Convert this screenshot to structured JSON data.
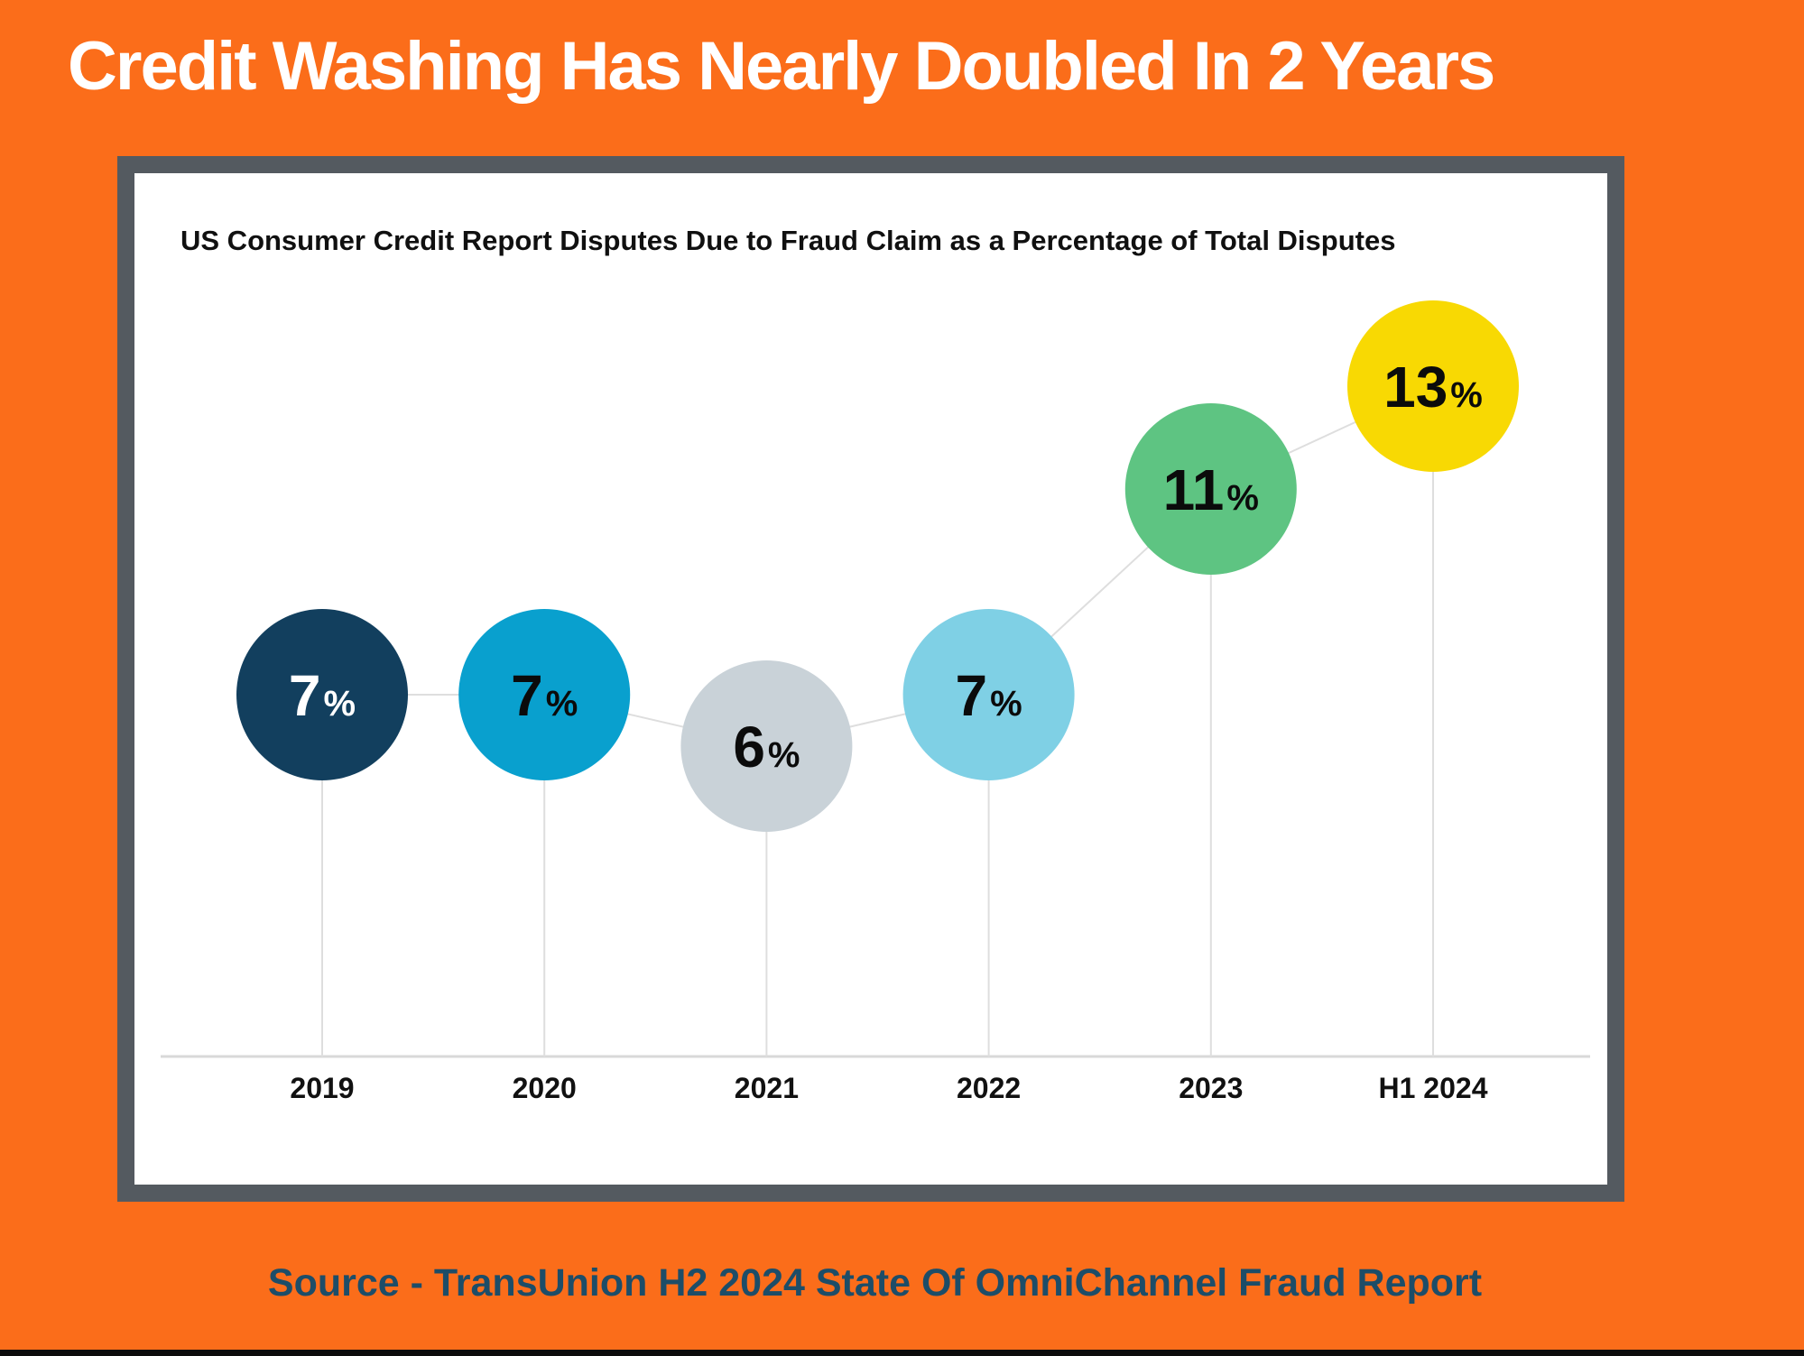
{
  "header": {
    "title": "Credit Washing Has Nearly Doubled In 2 Years"
  },
  "card": {
    "subtitle": "US Consumer Credit Report Disputes Due to Fraud Claim as a Percentage of Total Disputes"
  },
  "footer": {
    "source": "Source - TransUnion H2 2024 State Of OmniChannel Fraud Report"
  },
  "chart_data": {
    "type": "line",
    "subtype": "bubble-line",
    "title": "US Consumer Credit Report Disputes Due to Fraud Claim as a Percentage of Total Disputes",
    "categories": [
      "2019",
      "2020",
      "2021",
      "2022",
      "2023",
      "H1 2024"
    ],
    "values": [
      7,
      7,
      6,
      7,
      11,
      13
    ],
    "unit": "%",
    "ylim": [
      0,
      17.5
    ],
    "grid": false,
    "legend": false,
    "marker_colors": [
      "#123F5E",
      "#09A0CE",
      "#C9D2D8",
      "#7FD0E5",
      "#5EC482",
      "#F8D903"
    ],
    "value_label_colors": [
      "#FFFFFF",
      "#0B0B0B",
      "#0B0B0B",
      "#0B0B0B",
      "#0B0B0B",
      "#0B0B0B"
    ]
  },
  "colors": {
    "background": "#FB6D1A",
    "card_border": "#545A60",
    "card_background": "#FFFFFF",
    "title_text": "#FFFFFF",
    "subtitle_text": "#101010",
    "source_text": "#1D4D68",
    "connector_line": "#DEDEDE",
    "baseline": "#D9D9D9",
    "axis_label": "#111111",
    "bottom_bar": "#0C0C0C"
  }
}
